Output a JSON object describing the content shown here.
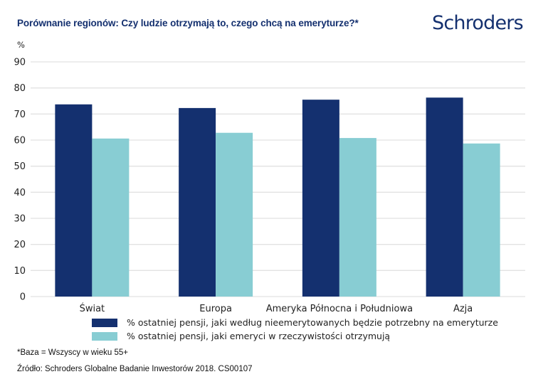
{
  "header": {
    "title": "Porównanie regionów: Czy ludzie otrzymają to, czego chcą na emeryturze?*",
    "logo": "Schroders"
  },
  "footer": {
    "base_note": "*Baza = Wszyscy w wieku 55+",
    "source": "Źródło: Schroders Globalne Badanie Inwestorów 2018. CS00107"
  },
  "colors": {
    "brand": "#14306f",
    "series_needed": "#14306f",
    "series_received": "#88cdd3",
    "gridline": "#e2e2e2"
  },
  "chart_data": {
    "type": "bar",
    "title": "Porównanie regionów: Czy ludzie otrzymają to, czego chcą na emeryturze?*",
    "ylabel": "%",
    "xlabel": "",
    "ylim": [
      0,
      90
    ],
    "yticks": [
      0,
      10,
      20,
      30,
      40,
      50,
      60,
      70,
      80,
      90
    ],
    "grid": true,
    "legend_position": "bottom",
    "categories": [
      "Świat",
      "Europa",
      "Ameryka Północna i Południowa",
      "Azja"
    ],
    "series": [
      {
        "name": "% ostatniej pensji, jaki według nieemerytowanych będzie potrzebny na emeryturze",
        "color": "#14306f",
        "values": [
          73.7,
          72.3,
          75.5,
          76.3
        ]
      },
      {
        "name": "% ostatniej pensji, jaki emeryci w rzeczywistości otrzymują",
        "color": "#88cdd3",
        "values": [
          60.6,
          62.8,
          60.8,
          58.7
        ]
      }
    ]
  }
}
